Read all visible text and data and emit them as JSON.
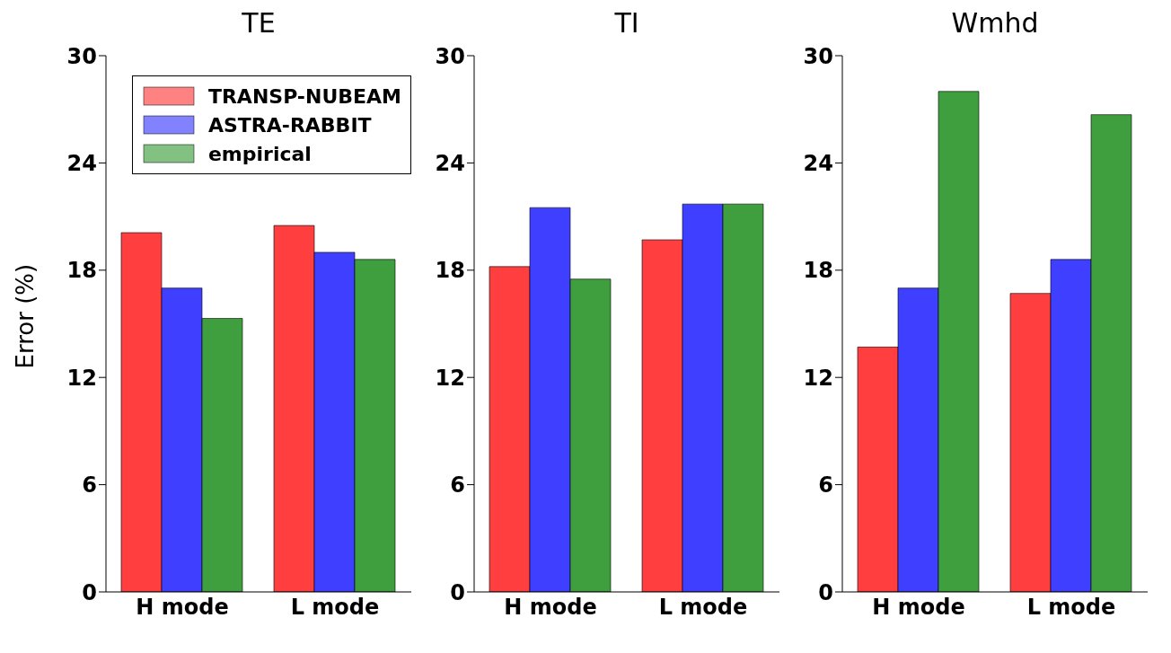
{
  "chart_data": [
    {
      "type": "bar",
      "title": "TE",
      "ylabel": "Error (%)",
      "categories": [
        "H mode",
        "L mode"
      ],
      "ylim": [
        0,
        30
      ],
      "yticks": [
        0,
        6,
        12,
        18,
        24,
        30
      ],
      "grid": false,
      "legend": "top right",
      "series": [
        {
          "name": "TRANSP-NUBEAM",
          "color": "#ff3f3f",
          "values": [
            20.1,
            20.5
          ]
        },
        {
          "name": "ASTRA-RABBIT",
          "color": "#3f3fff",
          "values": [
            17.0,
            19.0
          ]
        },
        {
          "name": "empirical",
          "color": "#3f9f3f",
          "values": [
            15.3,
            18.6
          ]
        }
      ]
    },
    {
      "type": "bar",
      "title": "TI",
      "categories": [
        "H mode",
        "L mode"
      ],
      "ylim": [
        0,
        30
      ],
      "yticks": [
        0,
        6,
        12,
        18,
        24,
        30
      ],
      "grid": false,
      "series": [
        {
          "color": "#ff3f3f",
          "values": [
            18.2,
            19.7
          ]
        },
        {
          "color": "#3f3fff",
          "values": [
            21.5,
            21.7
          ]
        },
        {
          "color": "#3f9f3f",
          "values": [
            17.5,
            21.7
          ]
        }
      ]
    },
    {
      "type": "bar",
      "title": "Wmhd",
      "categories": [
        "H mode",
        "L mode"
      ],
      "ylim": [
        0,
        30
      ],
      "yticks": [
        0,
        6,
        12,
        18,
        24,
        30
      ],
      "grid": false,
      "series": [
        {
          "color": "#ff3f3f",
          "values": [
            13.7,
            16.7
          ]
        },
        {
          "color": "#3f3fff",
          "values": [
            17.0,
            18.6
          ]
        },
        {
          "color": "#3f9f3f",
          "values": [
            28.0,
            26.7
          ]
        }
      ]
    }
  ]
}
